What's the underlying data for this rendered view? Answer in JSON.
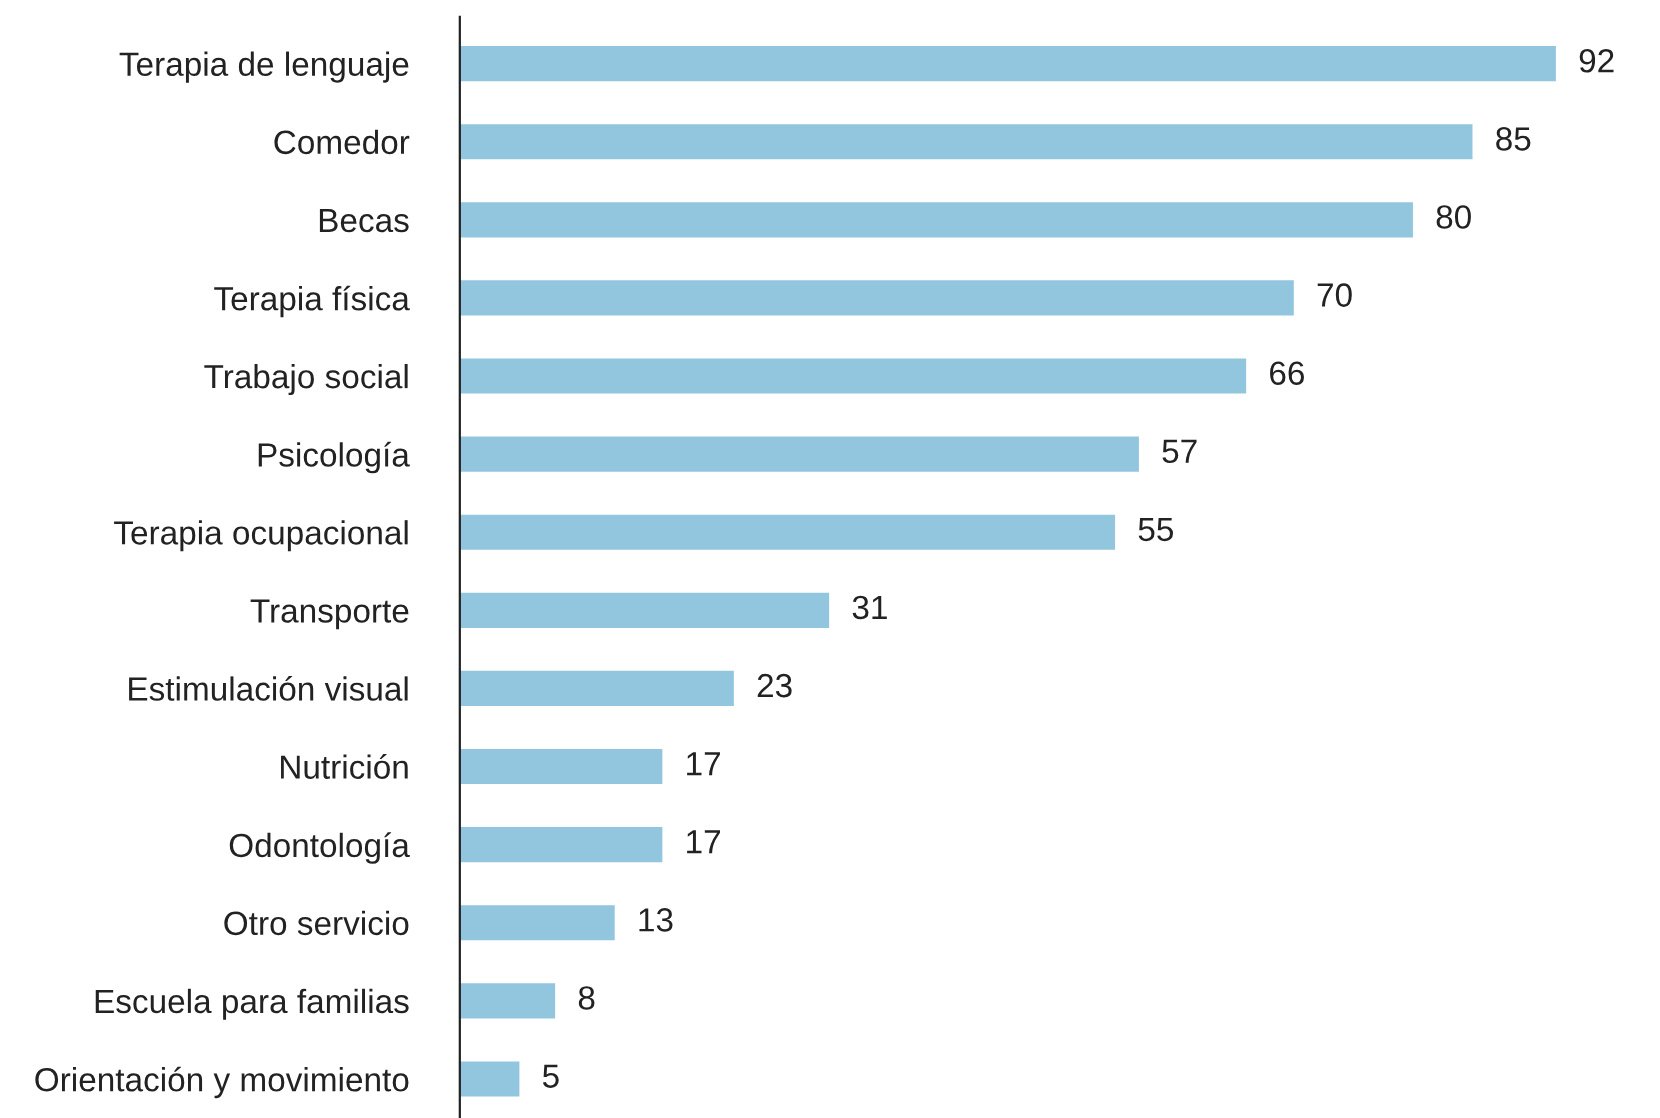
{
  "chart_data": {
    "type": "bar",
    "orientation": "horizontal",
    "categories": [
      "Terapia de lenguaje",
      "Comedor",
      "Becas",
      "Terapia física",
      "Trabajo social",
      "Psicología",
      "Terapia ocupacional",
      "Transporte",
      "Estimulación visual",
      "Nutrición",
      "Odontología",
      "Otro servicio",
      "Escuela para familias",
      "Orientación y movimiento"
    ],
    "values": [
      92,
      85,
      80,
      70,
      66,
      57,
      55,
      31,
      23,
      17,
      17,
      13,
      8,
      5
    ],
    "color": "#92c5de",
    "data_labels": true,
    "grid": false,
    "legend": false
  }
}
